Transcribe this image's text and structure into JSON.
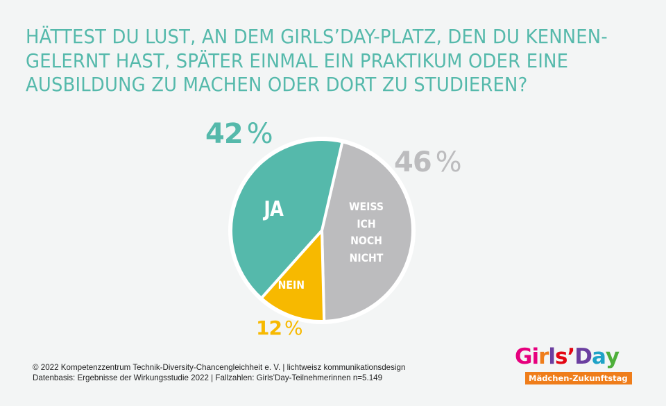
{
  "title_lines": [
    "HÄTTEST DU LUST, AN DEM GIRLS’DAY-PLATZ, DEN DU KENNEN-",
    "GELERNT HAST, SPÄTER EINMAL EIN PRAKTIKUM ODER EINE",
    "AUSBILDUNG ZU MACHEN ODER DORT ZU STUDIEREN?"
  ],
  "chart_data": {
    "type": "pie",
    "title": "HÄTTEST DU LUST, AN DEM GIRLS’DAY-PLATZ, DEN DU KENNENGELERNT HAST, SPÄTER EINMAL EIN PRAKTIKUM ODER EINE AUSBILDUNG ZU MACHEN ODER DORT ZU STUDIEREN?",
    "start_angle_deg_clockwise_from_top": 13,
    "slices": [
      {
        "key": "weiss",
        "label": "WEISS ICH NOCH NICHT",
        "label_lines": [
          "WEISS",
          "ICH",
          "NOCH",
          "NICHT"
        ],
        "value": 46,
        "value_num": "46",
        "unit": "%",
        "color": "#bcbcbe"
      },
      {
        "key": "nein",
        "label": "NEIN",
        "label_lines": [
          "NEIN"
        ],
        "value": 12,
        "value_num": "12",
        "unit": "%",
        "color": "#f7b900"
      },
      {
        "key": "ja",
        "label": "JA",
        "label_lines": [
          "JA"
        ],
        "value": 42,
        "value_num": "42",
        "unit": "%",
        "color": "#55b9ab"
      }
    ],
    "border_color": "#ffffff"
  },
  "footer": {
    "line1": "© 2022  Kompetenzzentrum Technik-Diversity-Chancengleichheit e. V. | lichtweisz kommunikationsdesign",
    "line2": "Datenbasis: Ergebnisse der Wirkungsstudie 2022 | Fallzahlen: Girls’Day-Teilnehmerinnen n=5.149"
  },
  "logo": {
    "letters": [
      {
        "char": "G",
        "color": "#e6007e"
      },
      {
        "char": "i",
        "color": "#e6007e"
      },
      {
        "char": "r",
        "color": "#ef7d1a"
      },
      {
        "char": "l",
        "color": "#6b3fa0"
      },
      {
        "char": "s",
        "color": "#e30613"
      },
      {
        "char": "’",
        "color": "#e30613"
      },
      {
        "char": "D",
        "color": "#6b3fa0"
      },
      {
        "char": "a",
        "color": "#1fa3c7"
      },
      {
        "char": "y",
        "color": "#4daf3a"
      }
    ],
    "tagline": "Mädchen-Zukunftstag",
    "tagline_bg": "#ef7d1a"
  }
}
